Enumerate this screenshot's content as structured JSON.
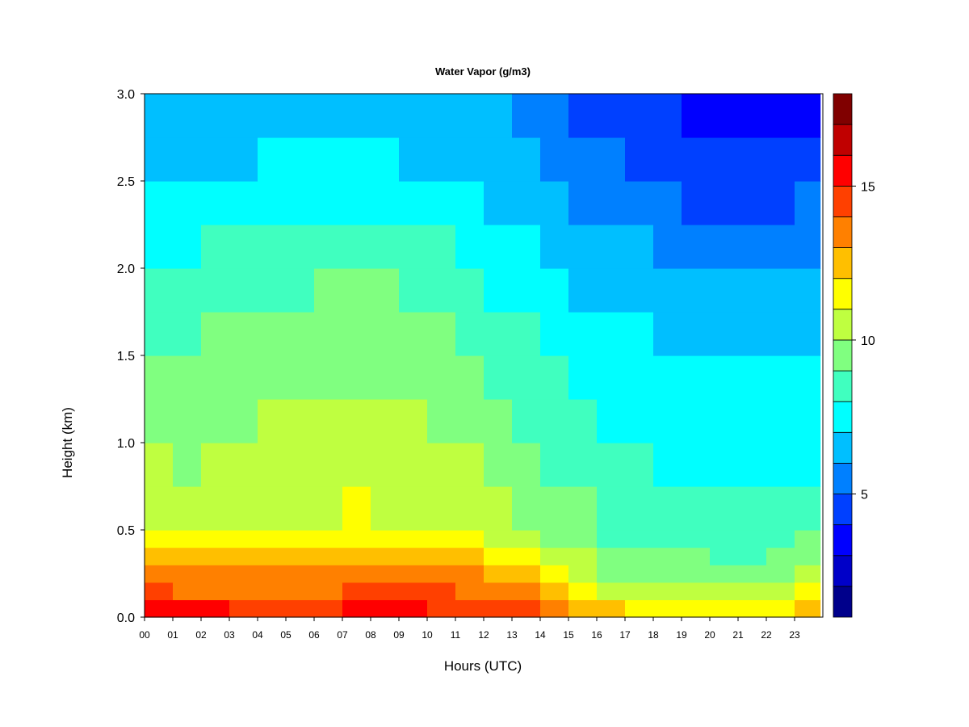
{
  "chart_data": {
    "type": "heatmap",
    "title": "Water Vapor (g/m3)",
    "xlabel": "Hours (UTC)",
    "ylabel": "Height (km)",
    "xlim": [
      0,
      24
    ],
    "ylim": [
      0,
      3.0
    ],
    "x_ticks": [
      "00",
      "01",
      "02",
      "03",
      "04",
      "05",
      "06",
      "07",
      "08",
      "09",
      "10",
      "11",
      "12",
      "13",
      "14",
      "15",
      "16",
      "17",
      "18",
      "19",
      "20",
      "21",
      "22",
      "23"
    ],
    "y_ticks": [
      "0.0",
      "0.5",
      "1.0",
      "1.5",
      "2.0",
      "2.5",
      "3.0"
    ],
    "colorbar": {
      "range": [
        1,
        18
      ],
      "levels": [
        1,
        2,
        3,
        4,
        5,
        6,
        7,
        8,
        9,
        10,
        11,
        12,
        13,
        14,
        15,
        16,
        17,
        18
      ],
      "tick_labels": [
        5,
        10,
        15
      ],
      "colors": [
        "#00008B",
        "#0000C8",
        "#0000FF",
        "#0040FF",
        "#0080FF",
        "#00BFFF",
        "#00FFFF",
        "#40FFBF",
        "#80FF80",
        "#BFFF40",
        "#FFFF00",
        "#FFBF00",
        "#FF8000",
        "#FF4000",
        "#FF0000",
        "#C00000",
        "#800000"
      ]
    },
    "hours": [
      0,
      1,
      2,
      3,
      4,
      5,
      6,
      7,
      8,
      9,
      10,
      11,
      12,
      13,
      14,
      15,
      16,
      17,
      18,
      19,
      20,
      21,
      22,
      23
    ],
    "heights_km": [
      0.0,
      0.1,
      0.2,
      0.3,
      0.4,
      0.5,
      0.75,
      1.0,
      1.25,
      1.5,
      1.75,
      2.0,
      2.25,
      2.5,
      2.75,
      3.0
    ],
    "values_gm3": [
      [
        15.2,
        14.0,
        13.4,
        12.3,
        11.2,
        10.6,
        10.0,
        9.6,
        9.2,
        8.8,
        8.4,
        7.9,
        7.3,
        6.9,
        6.6,
        6.3
      ],
      [
        15.0,
        13.8,
        13.2,
        12.1,
        11.1,
        10.5,
        9.9,
        9.5,
        9.1,
        8.7,
        8.3,
        7.8,
        7.2,
        6.8,
        6.5,
        6.2
      ],
      [
        15.0,
        13.9,
        13.3,
        12.2,
        11.2,
        10.7,
        10.2,
        9.8,
        9.4,
        9.0,
        8.6,
        8.0,
        7.4,
        6.9,
        6.6,
        6.3
      ],
      [
        14.8,
        13.6,
        13.0,
        12.0,
        11.0,
        10.6,
        10.1,
        9.8,
        9.4,
        9.0,
        8.7,
        8.1,
        7.4,
        6.9,
        6.5,
        6.2
      ],
      [
        14.8,
        13.6,
        13.1,
        12.1,
        11.1,
        10.7,
        10.3,
        10.0,
        9.6,
        9.2,
        8.8,
        8.2,
        7.5,
        7.0,
        6.6,
        6.3
      ],
      [
        14.8,
        13.6,
        13.1,
        12.1,
        11.1,
        10.8,
        10.4,
        10.1,
        9.7,
        9.3,
        8.9,
        8.3,
        7.5,
        7.0,
        6.6,
        6.3
      ],
      [
        14.9,
        13.8,
        13.3,
        12.3,
        11.3,
        10.9,
        10.5,
        10.2,
        9.8,
        9.4,
        9.0,
        8.4,
        7.6,
        7.0,
        6.6,
        6.3
      ],
      [
        15.0,
        14.0,
        13.5,
        12.6,
        11.6,
        11.0,
        10.6,
        10.3,
        9.9,
        9.5,
        9.0,
        8.5,
        7.6,
        7.0,
        6.6,
        6.3
      ],
      [
        15.0,
        14.1,
        13.5,
        12.6,
        11.5,
        10.9,
        10.5,
        10.2,
        9.8,
        9.4,
        9.0,
        8.4,
        7.6,
        7.0,
        6.6,
        6.3
      ],
      [
        15.0,
        14.1,
        13.5,
        12.5,
        11.5,
        10.8,
        10.4,
        10.0,
        9.6,
        9.2,
        8.9,
        8.3,
        7.5,
        6.9,
        6.5,
        6.2
      ],
      [
        14.9,
        14.0,
        13.4,
        12.4,
        11.3,
        10.7,
        10.2,
        9.8,
        9.4,
        9.0,
        8.6,
        8.0,
        7.3,
        6.8,
        6.4,
        6.1
      ],
      [
        14.9,
        13.8,
        13.2,
        12.2,
        11.1,
        10.5,
        10.0,
        9.5,
        9.1,
        8.7,
        8.3,
        7.7,
        7.1,
        6.7,
        6.3,
        6.0
      ],
      [
        14.7,
        13.6,
        12.9,
        11.8,
        10.7,
        10.1,
        9.6,
        9.1,
        8.7,
        8.3,
        7.9,
        7.4,
        6.9,
        6.6,
        6.2,
        5.8
      ],
      [
        14.5,
        13.3,
        12.6,
        11.6,
        10.6,
        9.8,
        9.3,
        8.8,
        8.4,
        8.0,
        7.6,
        7.1,
        6.6,
        6.2,
        5.6,
        5.0
      ],
      [
        13.0,
        12.0,
        11.2,
        10.5,
        9.8,
        9.3,
        8.9,
        8.4,
        8.0,
        7.6,
        7.1,
        6.6,
        6.0,
        5.5,
        5.0,
        4.5
      ],
      [
        12.8,
        11.6,
        10.9,
        10.2,
        9.6,
        9.1,
        8.6,
        8.2,
        7.8,
        7.4,
        6.9,
        6.3,
        5.7,
        5.3,
        4.8,
        4.3
      ],
      [
        12.0,
        10.5,
        9.8,
        9.3,
        8.9,
        8.5,
        8.1,
        7.8,
        7.5,
        7.1,
        6.7,
        6.1,
        5.5,
        5.0,
        4.5,
        4.0
      ],
      [
        11.8,
        10.4,
        9.6,
        9.2,
        8.8,
        8.4,
        8.0,
        7.7,
        7.4,
        7.0,
        6.6,
        6.0,
        5.3,
        4.8,
        4.3,
        3.8
      ],
      [
        11.5,
        10.2,
        9.5,
        9.1,
        8.7,
        8.3,
        7.9,
        7.6,
        7.3,
        6.9,
        6.5,
        5.8,
        5.1,
        4.5,
        4.0,
        3.4
      ],
      [
        11.0,
        10.0,
        9.4,
        9.0,
        8.6,
        8.2,
        7.8,
        7.5,
        7.2,
        6.8,
        6.4,
        5.6,
        4.9,
        4.3,
        3.6,
        3.0
      ],
      [
        11.0,
        10.0,
        9.3,
        8.9,
        8.5,
        8.1,
        7.7,
        7.4,
        7.1,
        6.7,
        6.3,
        5.6,
        4.8,
        4.2,
        3.5,
        2.9
      ],
      [
        11.2,
        10.0,
        9.2,
        8.8,
        8.4,
        8.0,
        7.6,
        7.3,
        7.0,
        6.6,
        6.2,
        5.5,
        4.8,
        4.1,
        3.5,
        2.9
      ],
      [
        11.7,
        10.6,
        9.6,
        9.1,
        8.6,
        8.1,
        7.7,
        7.4,
        7.1,
        6.7,
        6.3,
        5.6,
        4.9,
        4.3,
        3.6,
        3.0
      ],
      [
        12.8,
        11.6,
        10.5,
        9.6,
        9.0,
        8.4,
        7.9,
        7.6,
        7.2,
        6.8,
        6.4,
        5.7,
        5.0,
        4.4,
        3.7,
        3.1
      ]
    ]
  }
}
